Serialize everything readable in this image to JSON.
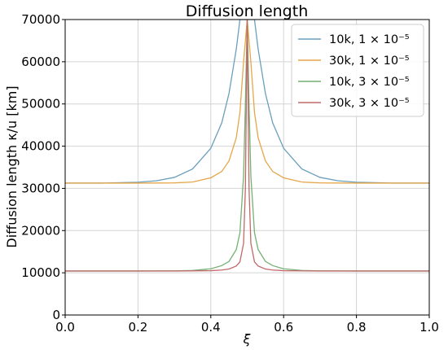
{
  "chart_data": {
    "type": "line",
    "title": "Diffusion length",
    "xlabel": "ξ",
    "ylabel": "Diffusion length  κ/u [km]",
    "xlim": [
      0.0,
      1.0
    ],
    "ylim": [
      0,
      70000
    ],
    "xticks": [
      "0.0",
      "0.2",
      "0.4",
      "0.6",
      "0.8",
      "1.0"
    ],
    "yticks": [
      "0",
      "10000",
      "20000",
      "30000",
      "40000",
      "50000",
      "60000",
      "70000"
    ],
    "grid": true,
    "legend_position": "top-right",
    "series": [
      {
        "name": "10k, 1 × 10⁻⁵",
        "color": "#6a9fbd",
        "x": [
          0.0,
          0.1,
          0.2,
          0.25,
          0.3,
          0.35,
          0.4,
          0.43,
          0.45,
          0.47,
          0.48,
          0.49,
          0.5,
          0.51,
          0.52,
          0.53,
          0.55,
          0.57,
          0.6,
          0.65,
          0.7,
          0.75,
          0.8,
          0.9,
          1.0
        ],
        "values": [
          31250,
          31255,
          31450,
          31800,
          32600,
          34600,
          39500,
          45500,
          52500,
          63000,
          70000,
          70000,
          70000,
          70000,
          70000,
          63000,
          52500,
          45500,
          39500,
          34600,
          32600,
          31800,
          31450,
          31255,
          31250
        ]
      },
      {
        "name": "30k, 1 × 10⁻⁵",
        "color": "#e6a64a",
        "x": [
          0.0,
          0.2,
          0.3,
          0.35,
          0.4,
          0.43,
          0.45,
          0.47,
          0.48,
          0.49,
          0.5,
          0.51,
          0.52,
          0.53,
          0.55,
          0.57,
          0.6,
          0.65,
          0.7,
          0.8,
          1.0
        ],
        "values": [
          31250,
          31255,
          31300,
          31500,
          32500,
          34000,
          36500,
          42000,
          48000,
          60000,
          70000,
          60000,
          48000,
          42000,
          36500,
          34000,
          32500,
          31500,
          31300,
          31255,
          31250
        ]
      },
      {
        "name": "10k, 3 × 10⁻⁵",
        "color": "#74b174",
        "x": [
          0.0,
          0.2,
          0.3,
          0.35,
          0.4,
          0.43,
          0.45,
          0.47,
          0.48,
          0.49,
          0.495,
          0.5,
          0.505,
          0.51,
          0.52,
          0.53,
          0.55,
          0.57,
          0.6,
          0.65,
          0.7,
          0.8,
          1.0
        ],
        "values": [
          10420,
          10425,
          10460,
          10560,
          10950,
          11700,
          12700,
          15500,
          19500,
          33000,
          50000,
          70000,
          50000,
          33000,
          19500,
          15500,
          12700,
          11700,
          10950,
          10560,
          10460,
          10425,
          10420
        ]
      },
      {
        "name": "30k, 3 × 10⁻⁵",
        "color": "#c06a6a",
        "x": [
          0.0,
          0.3,
          0.4,
          0.43,
          0.45,
          0.47,
          0.48,
          0.49,
          0.495,
          0.5,
          0.505,
          0.51,
          0.52,
          0.53,
          0.55,
          0.57,
          0.6,
          0.7,
          1.0
        ],
        "values": [
          10420,
          10425,
          10500,
          10650,
          10900,
          11600,
          12600,
          17000,
          30000,
          70000,
          30000,
          17000,
          12600,
          11600,
          10900,
          10650,
          10500,
          10425,
          10420
        ]
      }
    ]
  }
}
